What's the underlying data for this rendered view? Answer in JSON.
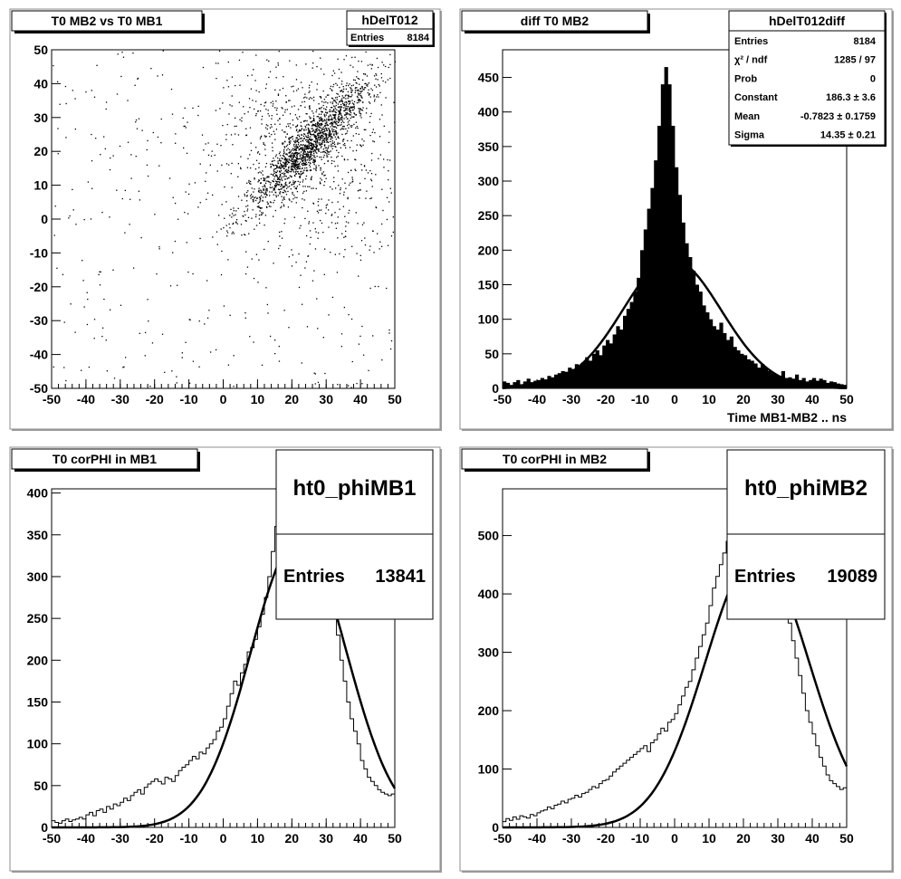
{
  "chart_data": [
    {
      "type": "scatter",
      "title": "T0 MB2 vs T0 MB1",
      "xlim": [
        -50,
        50
      ],
      "ylim": [
        -50,
        50
      ],
      "x_ticks": [
        -50,
        -40,
        -30,
        -20,
        -10,
        0,
        10,
        20,
        30,
        40,
        50
      ],
      "y_ticks": [
        -50,
        -40,
        -30,
        -20,
        -10,
        0,
        10,
        20,
        30,
        40,
        50
      ],
      "stats": {
        "name": "hDelT012",
        "rows": [
          {
            "label": "Entries",
            "value": "8184"
          }
        ]
      },
      "pattern": {
        "total_entries": 8184,
        "correlated_center": [
          25,
          22
        ],
        "slope": 1.0,
        "band_sigma": 4,
        "core_sigma": 9
      }
    },
    {
      "type": "bar",
      "title": "diff T0 MB2",
      "xlabel": "Time MB1-MB2  ..  ns",
      "xlim": [
        -50,
        50
      ],
      "ylim": [
        0,
        490
      ],
      "x_ticks": [
        -50,
        -40,
        -30,
        -20,
        -10,
        0,
        10,
        20,
        30,
        40,
        50
      ],
      "y_ticks": [
        0,
        50,
        100,
        150,
        200,
        250,
        300,
        350,
        400,
        450
      ],
      "bin_start": -50,
      "bin_width": 1,
      "values": [
        10,
        8,
        5,
        9,
        12,
        6,
        10,
        14,
        9,
        11,
        12,
        15,
        13,
        18,
        16,
        20,
        22,
        25,
        24,
        30,
        28,
        35,
        33,
        38,
        45,
        40,
        50,
        55,
        48,
        62,
        70,
        65,
        78,
        90,
        85,
        105,
        115,
        125,
        140,
        160,
        200,
        230,
        260,
        290,
        330,
        380,
        440,
        465,
        440,
        380,
        320,
        280,
        240,
        210,
        190,
        170,
        150,
        140,
        120,
        110,
        100,
        90,
        85,
        95,
        80,
        70,
        75,
        60,
        55,
        50,
        48,
        42,
        40,
        36,
        30,
        35,
        30,
        25,
        22,
        20,
        18,
        25,
        15,
        16,
        14,
        20,
        12,
        15,
        10,
        12,
        15,
        11,
        14,
        12,
        8,
        10,
        9,
        7,
        6,
        5
      ],
      "fit": {
        "function": "gaus",
        "constant": 186.3,
        "mean": -0.7823,
        "sigma": 14.35
      },
      "stats": {
        "name": "hDelT012diff",
        "rows": [
          {
            "label": "Entries",
            "value": "8184"
          },
          {
            "label": "χ² / ndf",
            "value": "1285 / 97"
          },
          {
            "label": "Prob",
            "value": "0"
          },
          {
            "label": "Constant",
            "value": "186.3 ± 3.6"
          },
          {
            "label": "Mean",
            "value": "-0.7823 ± 0.1759"
          },
          {
            "label": "Sigma",
            "value": "14.35 ± 0.21"
          }
        ]
      }
    },
    {
      "type": "line",
      "title": "T0 corPHI in MB1",
      "xlim": [
        -50,
        50
      ],
      "ylim": [
        0,
        405
      ],
      "x_ticks": [
        -50,
        -40,
        -30,
        -20,
        -10,
        0,
        10,
        20,
        30,
        40,
        50
      ],
      "y_ticks": [
        0,
        50,
        100,
        150,
        200,
        250,
        300,
        350,
        400
      ],
      "bin_start": -50,
      "bin_width": 1,
      "values": [
        8,
        6,
        5,
        8,
        10,
        7,
        9,
        10,
        12,
        10,
        15,
        18,
        14,
        20,
        22,
        18,
        25,
        22,
        28,
        26,
        30,
        35,
        32,
        38,
        42,
        45,
        40,
        48,
        52,
        55,
        58,
        55,
        52,
        60,
        58,
        55,
        62,
        68,
        72,
        75,
        80,
        85,
        82,
        90,
        88,
        95,
        100,
        105,
        115,
        120,
        130,
        145,
        160,
        175,
        170,
        185,
        195,
        210,
        215,
        225,
        240,
        255,
        275,
        300,
        330,
        360,
        380,
        400,
        420,
        440,
        460,
        470,
        465,
        455,
        440,
        430,
        420,
        390,
        370,
        340,
        315,
        290,
        260,
        230,
        200,
        175,
        150,
        130,
        115,
        100,
        80,
        70,
        60,
        55,
        50,
        45,
        42,
        40,
        38,
        40
      ],
      "fit": {
        "function": "gaus",
        "constant": 345,
        "mean": 22,
        "sigma": 14
      },
      "stats": {
        "name": "ht0_phiMB1",
        "rows": [
          {
            "label": "Entries",
            "value": "13841"
          }
        ]
      }
    },
    {
      "type": "line",
      "title": "T0 corPHI in MB2",
      "xlim": [
        -50,
        50
      ],
      "ylim": [
        0,
        580
      ],
      "x_ticks": [
        -50,
        -40,
        -30,
        -20,
        -10,
        0,
        10,
        20,
        30,
        40,
        50
      ],
      "y_ticks": [
        0,
        100,
        200,
        300,
        400,
        500
      ],
      "bin_start": -50,
      "bin_width": 1,
      "values": [
        10,
        15,
        12,
        18,
        14,
        20,
        18,
        16,
        22,
        20,
        25,
        28,
        30,
        35,
        32,
        38,
        40,
        45,
        42,
        48,
        50,
        55,
        52,
        58,
        60,
        65,
        70,
        68,
        75,
        80,
        82,
        88,
        95,
        100,
        105,
        110,
        115,
        120,
        125,
        130,
        135,
        140,
        130,
        145,
        150,
        160,
        170,
        165,
        180,
        185,
        195,
        210,
        225,
        240,
        250,
        270,
        290,
        310,
        330,
        350,
        380,
        410,
        430,
        450,
        470,
        490,
        510,
        530,
        545,
        560,
        575,
        585,
        580,
        570,
        560,
        550,
        540,
        520,
        500,
        470,
        440,
        410,
        380,
        350,
        320,
        290,
        260,
        230,
        200,
        180,
        160,
        140,
        120,
        105,
        90,
        80,
        75,
        70,
        65,
        68
      ],
      "fit": {
        "function": "gaus",
        "constant": 470,
        "mean": 24,
        "sigma": 15
      },
      "stats": {
        "name": "ht0_phiMB2",
        "rows": [
          {
            "label": "Entries",
            "value": "19089"
          }
        ]
      }
    }
  ]
}
